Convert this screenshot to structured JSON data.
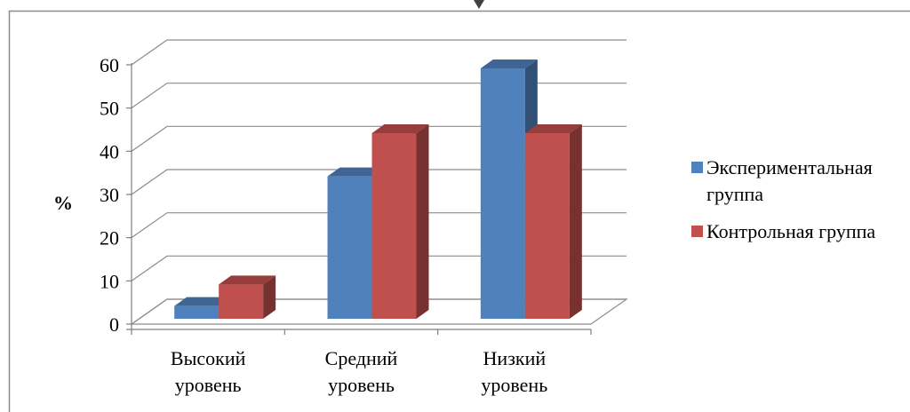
{
  "chart_data": {
    "type": "bar",
    "style": "3d-clustered-column",
    "title": "",
    "xlabel": "",
    "ylabel": "%",
    "ylim": [
      0,
      60
    ],
    "yticks": [
      0,
      10,
      20,
      30,
      40,
      50,
      60
    ],
    "grid": true,
    "legend_position": "right",
    "categories": [
      [
        "Высокий",
        "уровень"
      ],
      [
        "Средний",
        "уровень"
      ],
      [
        "Низкий",
        "уровень"
      ]
    ],
    "series": [
      {
        "name": [
          "Экспериментальная",
          "группа"
        ],
        "color": "#4F81BD",
        "values": [
          5,
          35,
          60
        ]
      },
      {
        "name": [
          "Контрольная группа"
        ],
        "color": "#C0504D",
        "values": [
          10,
          45,
          45
        ]
      }
    ]
  }
}
